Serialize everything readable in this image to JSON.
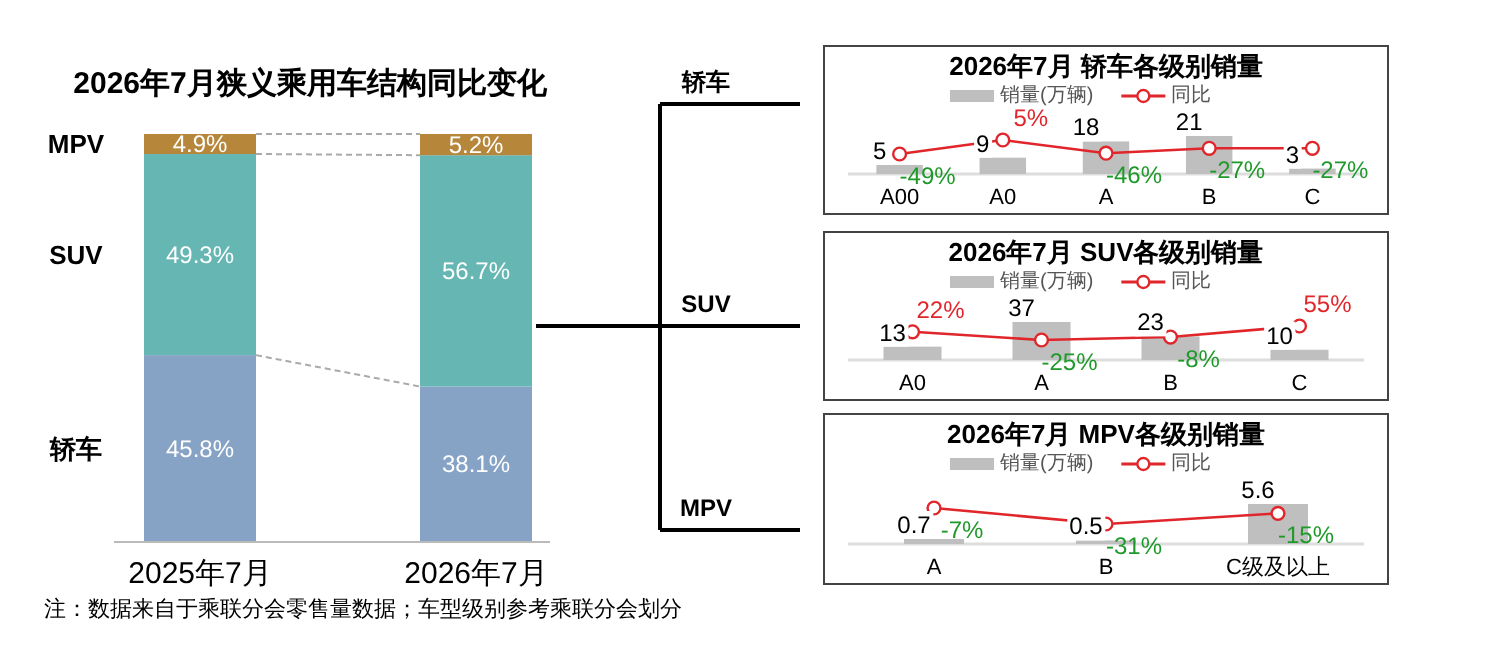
{
  "chart_data": [
    {
      "type": "bar",
      "stacked": true,
      "title": "2026年7月狭义乘用车结构同比变化",
      "categories": [
        "2025年7月",
        "2026年7月"
      ],
      "ylim": [
        0,
        100
      ],
      "tick_labels": "x",
      "series": [
        {
          "name": "轿车",
          "color": "#86a2c4",
          "values": [
            45.8,
            38.1
          ],
          "value_labels": [
            "45.8%",
            "38.1%"
          ]
        },
        {
          "name": "SUV",
          "color": "#66b6b3",
          "values": [
            49.3,
            56.7
          ],
          "value_labels": [
            "49.3%",
            "56.7%"
          ]
        },
        {
          "name": "MPV",
          "color": "#b6873a",
          "values": [
            4.9,
            5.2
          ],
          "value_labels": [
            "4.9%",
            "5.2%"
          ]
        }
      ],
      "annotations": [
        "注：数据来自于乘联分会零售量数据；车型级别参考乘联分会划分"
      ]
    },
    {
      "type": "bar",
      "title": "2026年7月 轿车各级别销量",
      "categories": [
        "A00",
        "A0",
        "A",
        "B",
        "C"
      ],
      "legend": "top",
      "tick_labels": "x",
      "series": [
        {
          "name": "销量(万辆)",
          "type": "bar",
          "color": "#bfbfbf",
          "values": [
            5,
            9,
            18,
            21,
            3
          ],
          "value_labels": [
            "5",
            "9",
            "18",
            "21",
            "3"
          ]
        },
        {
          "name": "同比",
          "type": "line",
          "axis": "y2",
          "marker": "circle",
          "color": "#e0262b",
          "values": [
            -49,
            5,
            -46,
            -27,
            -27
          ],
          "value_labels": [
            "-49%",
            "5%",
            "-46%",
            "-27%",
            "-27%"
          ]
        }
      ]
    },
    {
      "type": "bar",
      "title": "2026年7月 SUV各级别销量",
      "categories": [
        "A0",
        "A",
        "B",
        "C"
      ],
      "legend": "top",
      "tick_labels": "x",
      "series": [
        {
          "name": "销量(万辆)",
          "type": "bar",
          "color": "#bfbfbf",
          "values": [
            13,
            37,
            23,
            10
          ],
          "value_labels": [
            "13",
            "37",
            "23",
            "10"
          ]
        },
        {
          "name": "同比",
          "type": "line",
          "axis": "y2",
          "marker": "circle",
          "color": "#e0262b",
          "values": [
            22,
            -25,
            -8,
            55
          ],
          "value_labels": [
            "22%",
            "-25%",
            "-8%",
            "55%"
          ]
        }
      ]
    },
    {
      "type": "bar",
      "title": "2026年7月 MPV各级别销量",
      "categories": [
        "A",
        "B",
        "C级及以上"
      ],
      "legend": "top",
      "tick_labels": "x",
      "series": [
        {
          "name": "销量(万辆)",
          "type": "bar",
          "color": "#bfbfbf",
          "values": [
            0.7,
            0.5,
            5.6
          ],
          "value_labels": [
            "0.7",
            "0.5",
            "5.6"
          ]
        },
        {
          "name": "同比",
          "type": "line",
          "axis": "y2",
          "marker": "circle",
          "color": "#e0262b",
          "values": [
            -7,
            -31,
            -15
          ],
          "value_labels": [
            "-7%",
            "-31%",
            "-15%"
          ]
        }
      ]
    }
  ]
}
